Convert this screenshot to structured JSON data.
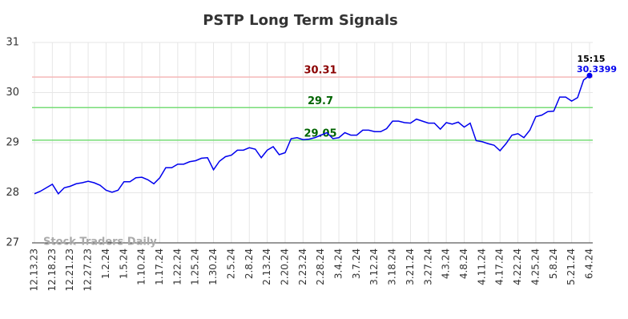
{
  "chart_data": {
    "type": "line",
    "title": "PSTP Long Term Signals",
    "watermark": "Stock Traders Daily",
    "categories": [
      "12.13.23",
      null,
      null,
      "12.18.23",
      null,
      null,
      "12.21.23",
      null,
      null,
      "12.27.23",
      null,
      null,
      "1.2.24",
      null,
      null,
      "1.5.24",
      null,
      null,
      "1.10.24",
      null,
      null,
      "1.17.24",
      null,
      null,
      "1.22.24",
      null,
      null,
      "1.25.24",
      null,
      null,
      "1.30.24",
      null,
      null,
      "2.5.24",
      null,
      null,
      "2.8.24",
      null,
      null,
      "2.13.24",
      null,
      null,
      "2.20.24",
      null,
      null,
      "2.23.24",
      null,
      null,
      "2.28.24",
      null,
      null,
      "3.4.24",
      null,
      null,
      "3.7.24",
      null,
      null,
      "3.12.24",
      null,
      null,
      "3.18.24",
      null,
      null,
      "3.21.24",
      null,
      null,
      "3.27.24",
      null,
      null,
      "4.3.24",
      null,
      null,
      "4.8.24",
      null,
      null,
      "4.11.24",
      null,
      null,
      "4.17.24",
      null,
      null,
      "4.22.24",
      null,
      null,
      "4.25.24",
      null,
      null,
      "5.8.24",
      null,
      null,
      "5.21.24",
      null,
      null,
      "6.4.24"
    ],
    "series": [
      {
        "name": "PSTP",
        "color": "#0000ee",
        "values": [
          27.98,
          28.03,
          28.1,
          28.17,
          27.98,
          28.1,
          28.13,
          28.18,
          28.2,
          28.23,
          28.2,
          28.15,
          28.05,
          28.01,
          28.05,
          28.22,
          28.22,
          28.3,
          28.31,
          28.26,
          28.18,
          28.3,
          28.5,
          28.5,
          28.57,
          28.57,
          28.62,
          28.64,
          28.69,
          28.7,
          28.46,
          28.63,
          28.72,
          28.75,
          28.85,
          28.85,
          28.9,
          28.87,
          28.7,
          28.85,
          28.92,
          28.76,
          28.8,
          29.08,
          29.1,
          29.06,
          29.07,
          29.1,
          29.15,
          29.2,
          29.08,
          29.1,
          29.2,
          29.15,
          29.15,
          29.25,
          29.25,
          29.22,
          29.22,
          29.28,
          29.43,
          29.43,
          29.4,
          29.39,
          29.47,
          29.43,
          29.39,
          29.39,
          29.27,
          29.4,
          29.37,
          29.41,
          29.31,
          29.39,
          29.04,
          29.02,
          28.98,
          28.95,
          28.84,
          28.98,
          29.15,
          29.18,
          29.1,
          29.25,
          29.52,
          29.55,
          29.62,
          29.63,
          29.91,
          29.91,
          29.83,
          29.9,
          30.25,
          30.3399
        ]
      }
    ],
    "last_time": "15:15",
    "hlines": [
      {
        "value": 30.31,
        "color": "#f5b8b8",
        "label_color": "#8b0000"
      },
      {
        "value": 29.7,
        "color": "#77dd77",
        "label_color": "#006400"
      },
      {
        "value": 29.05,
        "color": "#77dd77",
        "label_color": "#006400"
      }
    ],
    "ylim": [
      27,
      31
    ],
    "yticks": [
      27,
      28,
      29,
      30,
      31
    ],
    "grid": true
  }
}
